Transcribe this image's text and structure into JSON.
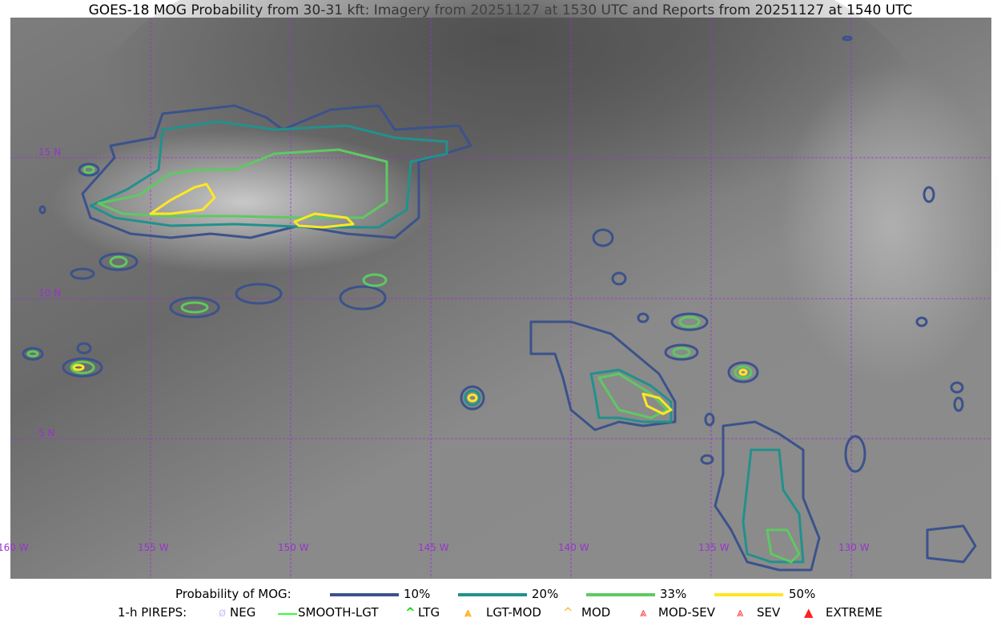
{
  "title": "GOES-18 MOG Probability from 30-31 kft: Imagery from 20251127 at 1530 UTC and Reports from 20251127 at 1540 UTC",
  "map": {
    "gridline_color": "#9933cc",
    "longitude_labels": [
      "160 W",
      "155 W",
      "150 W",
      "145 W",
      "140 W",
      "135 W",
      "130 W"
    ],
    "latitude_labels": [
      "15 N",
      "10 N",
      "5 N"
    ]
  },
  "legend_mog": {
    "label": "Probability of MOG:",
    "items": [
      {
        "label": "10%",
        "color": "#3b528b"
      },
      {
        "label": "20%",
        "color": "#21918c"
      },
      {
        "label": "33%",
        "color": "#5ec962"
      },
      {
        "label": "50%",
        "color": "#fde725"
      }
    ]
  },
  "legend_pireps": {
    "label": "1-h PIREPS:",
    "items": [
      {
        "label": "NEG",
        "color": "#c8c8ff",
        "icon": "neg-icon"
      },
      {
        "label": "SMOOTH-LGT",
        "color": "#33ff33",
        "icon": "line-icon"
      },
      {
        "label": "LTG",
        "color": "#00dd00",
        "icon": "caret-icon"
      },
      {
        "label": "LGT-MOD",
        "color": "#ffb020",
        "icon": "caret-bar-icon"
      },
      {
        "label": "MOD",
        "color": "#ffb020",
        "icon": "caret-icon"
      },
      {
        "label": "MOD-SEV",
        "color": "#ff3030",
        "icon": "double-caret-bar-icon"
      },
      {
        "label": "SEV",
        "color": "#ff3030",
        "icon": "double-caret-icon"
      },
      {
        "label": "EXTREME",
        "color": "#ff2020",
        "icon": "filled-triangle-icon"
      }
    ]
  }
}
